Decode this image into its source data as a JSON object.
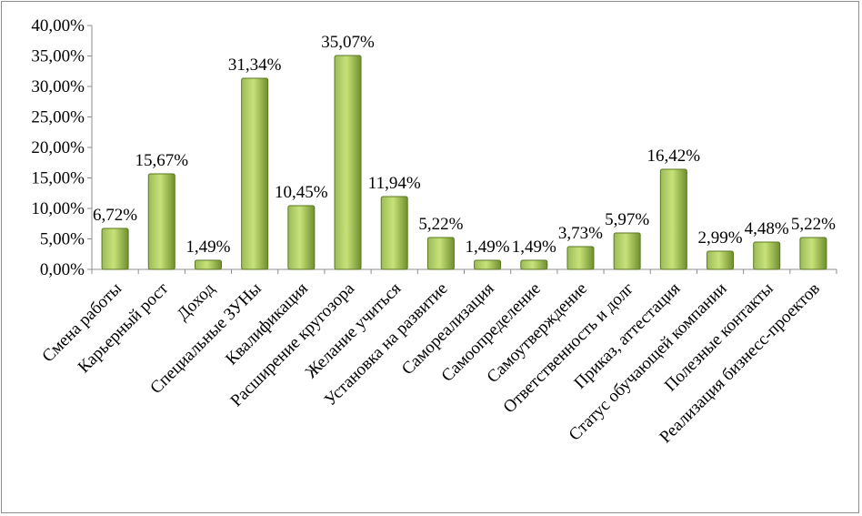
{
  "chart_data": {
    "type": "bar",
    "categories": [
      "Смена работы",
      "Карьерный рост",
      "Доход",
      "Специальные ЗУНы",
      "Квалификация",
      "Расширение кругозора",
      "Желание учиться",
      "Установка на развитие",
      "Самореализация",
      "Самоопределение",
      "Самоутверждение",
      "Ответственность и долг",
      "Приказ, аттестация",
      "Статус обучающей компании",
      "Полезные контакты",
      "Реализация бизнесс-проектов"
    ],
    "values": [
      6.72,
      15.67,
      1.49,
      31.34,
      10.45,
      35.07,
      11.94,
      5.22,
      1.49,
      1.49,
      3.73,
      5.97,
      16.42,
      2.99,
      4.48,
      5.22
    ],
    "data_labels": [
      "6,72%",
      "15,67%",
      "1,49%",
      "31,34%",
      "10,45%",
      "35,07%",
      "11,94%",
      "5,22%",
      "1,49%",
      "1,49%",
      "3,73%",
      "5,97%",
      "16,42%",
      "2,99%",
      "4,48%",
      "5,22%"
    ],
    "y_ticks": [
      "0,00%",
      "5,00%",
      "10,00%",
      "15,00%",
      "20,00%",
      "25,00%",
      "30,00%",
      "35,00%",
      "40,00%"
    ],
    "ylim": [
      0,
      40
    ],
    "title": "",
    "xlabel": "",
    "ylabel": "",
    "grid": false,
    "legend": "none",
    "colors": {
      "bar_light": "#c8e27a",
      "bar_mid": "#9bbb59",
      "bar_dark": "#6f8f2e",
      "bar_edge": "#5a7a22",
      "axis": "#8c8c8c"
    }
  }
}
